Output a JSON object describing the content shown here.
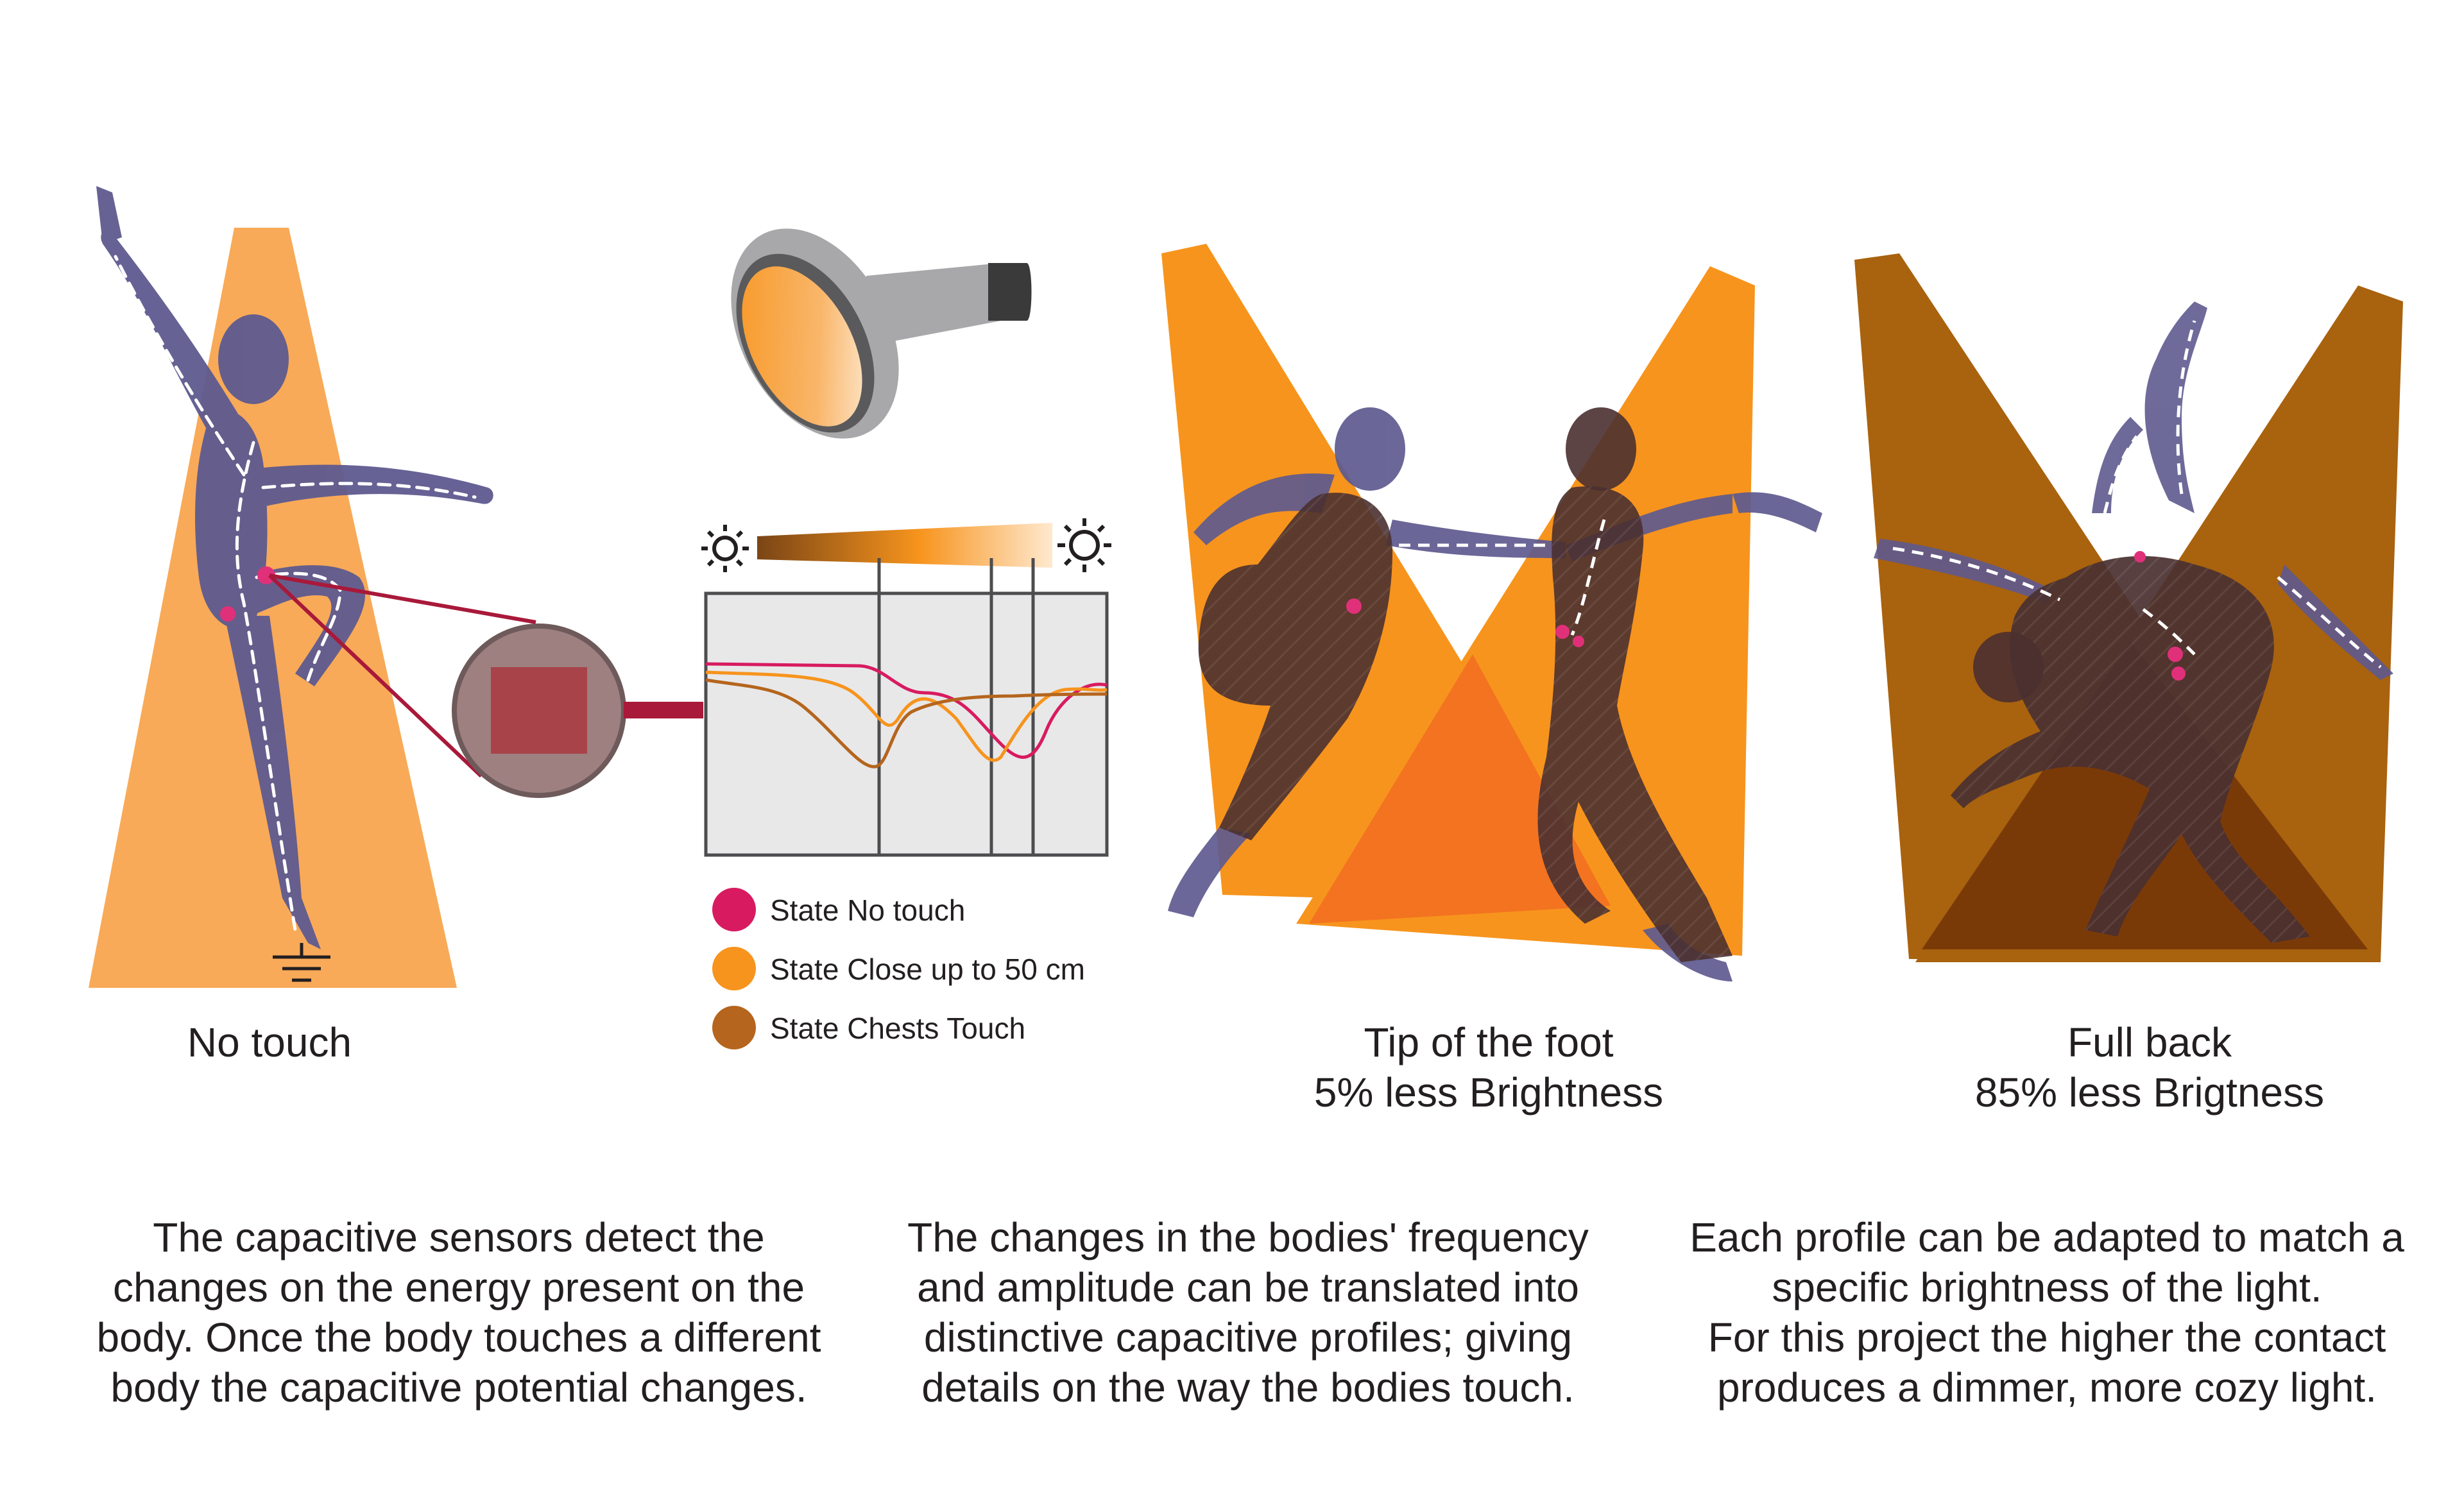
{
  "colors": {
    "no_touch": "#d81b60",
    "close_50cm": "#f7941d",
    "chests_touch": "#b5651d",
    "beam_light": "#f7941d",
    "beam_soft": "#f8aa58",
    "beam_dark": "#a9620e",
    "silhouette": "#5e5a8f",
    "silhouette_dark": "#4a3030",
    "sensor_line": "#a8193a"
  },
  "captions": {
    "panel1": "No touch",
    "panel3_line1": "Tip of the foot",
    "panel3_line2": "5% less Brightness",
    "panel4_line1": "Full back",
    "panel4_line2": "85% less Brigtness"
  },
  "legend": [
    {
      "label": "State No touch",
      "color": "#d81b60"
    },
    {
      "label": "State Close up to 50 cm",
      "color": "#f7941d"
    },
    {
      "label": "State Chests Touch",
      "color": "#b5651d"
    }
  ],
  "paragraphs": {
    "left": [
      "The capacitive sensors detect the",
      "changes on the energy present on the",
      "body. Once the body touches a different",
      "body the capacitive potential changes."
    ],
    "middle": [
      "The changes in the bodies' frequency",
      "and amplitude can be translated into",
      "distinctive capacitive profiles; giving",
      "details on the way the bodies touch."
    ],
    "right": [
      "Each profile can be adapted to match a",
      "specific brightness of the light.",
      "For this project the higher the contact",
      "produces a dimmer, more cozy light."
    ]
  },
  "icons": [
    "lamp-icon",
    "sun-dim-icon",
    "sun-bright-icon",
    "ground-icon",
    "sensor-icon"
  ]
}
